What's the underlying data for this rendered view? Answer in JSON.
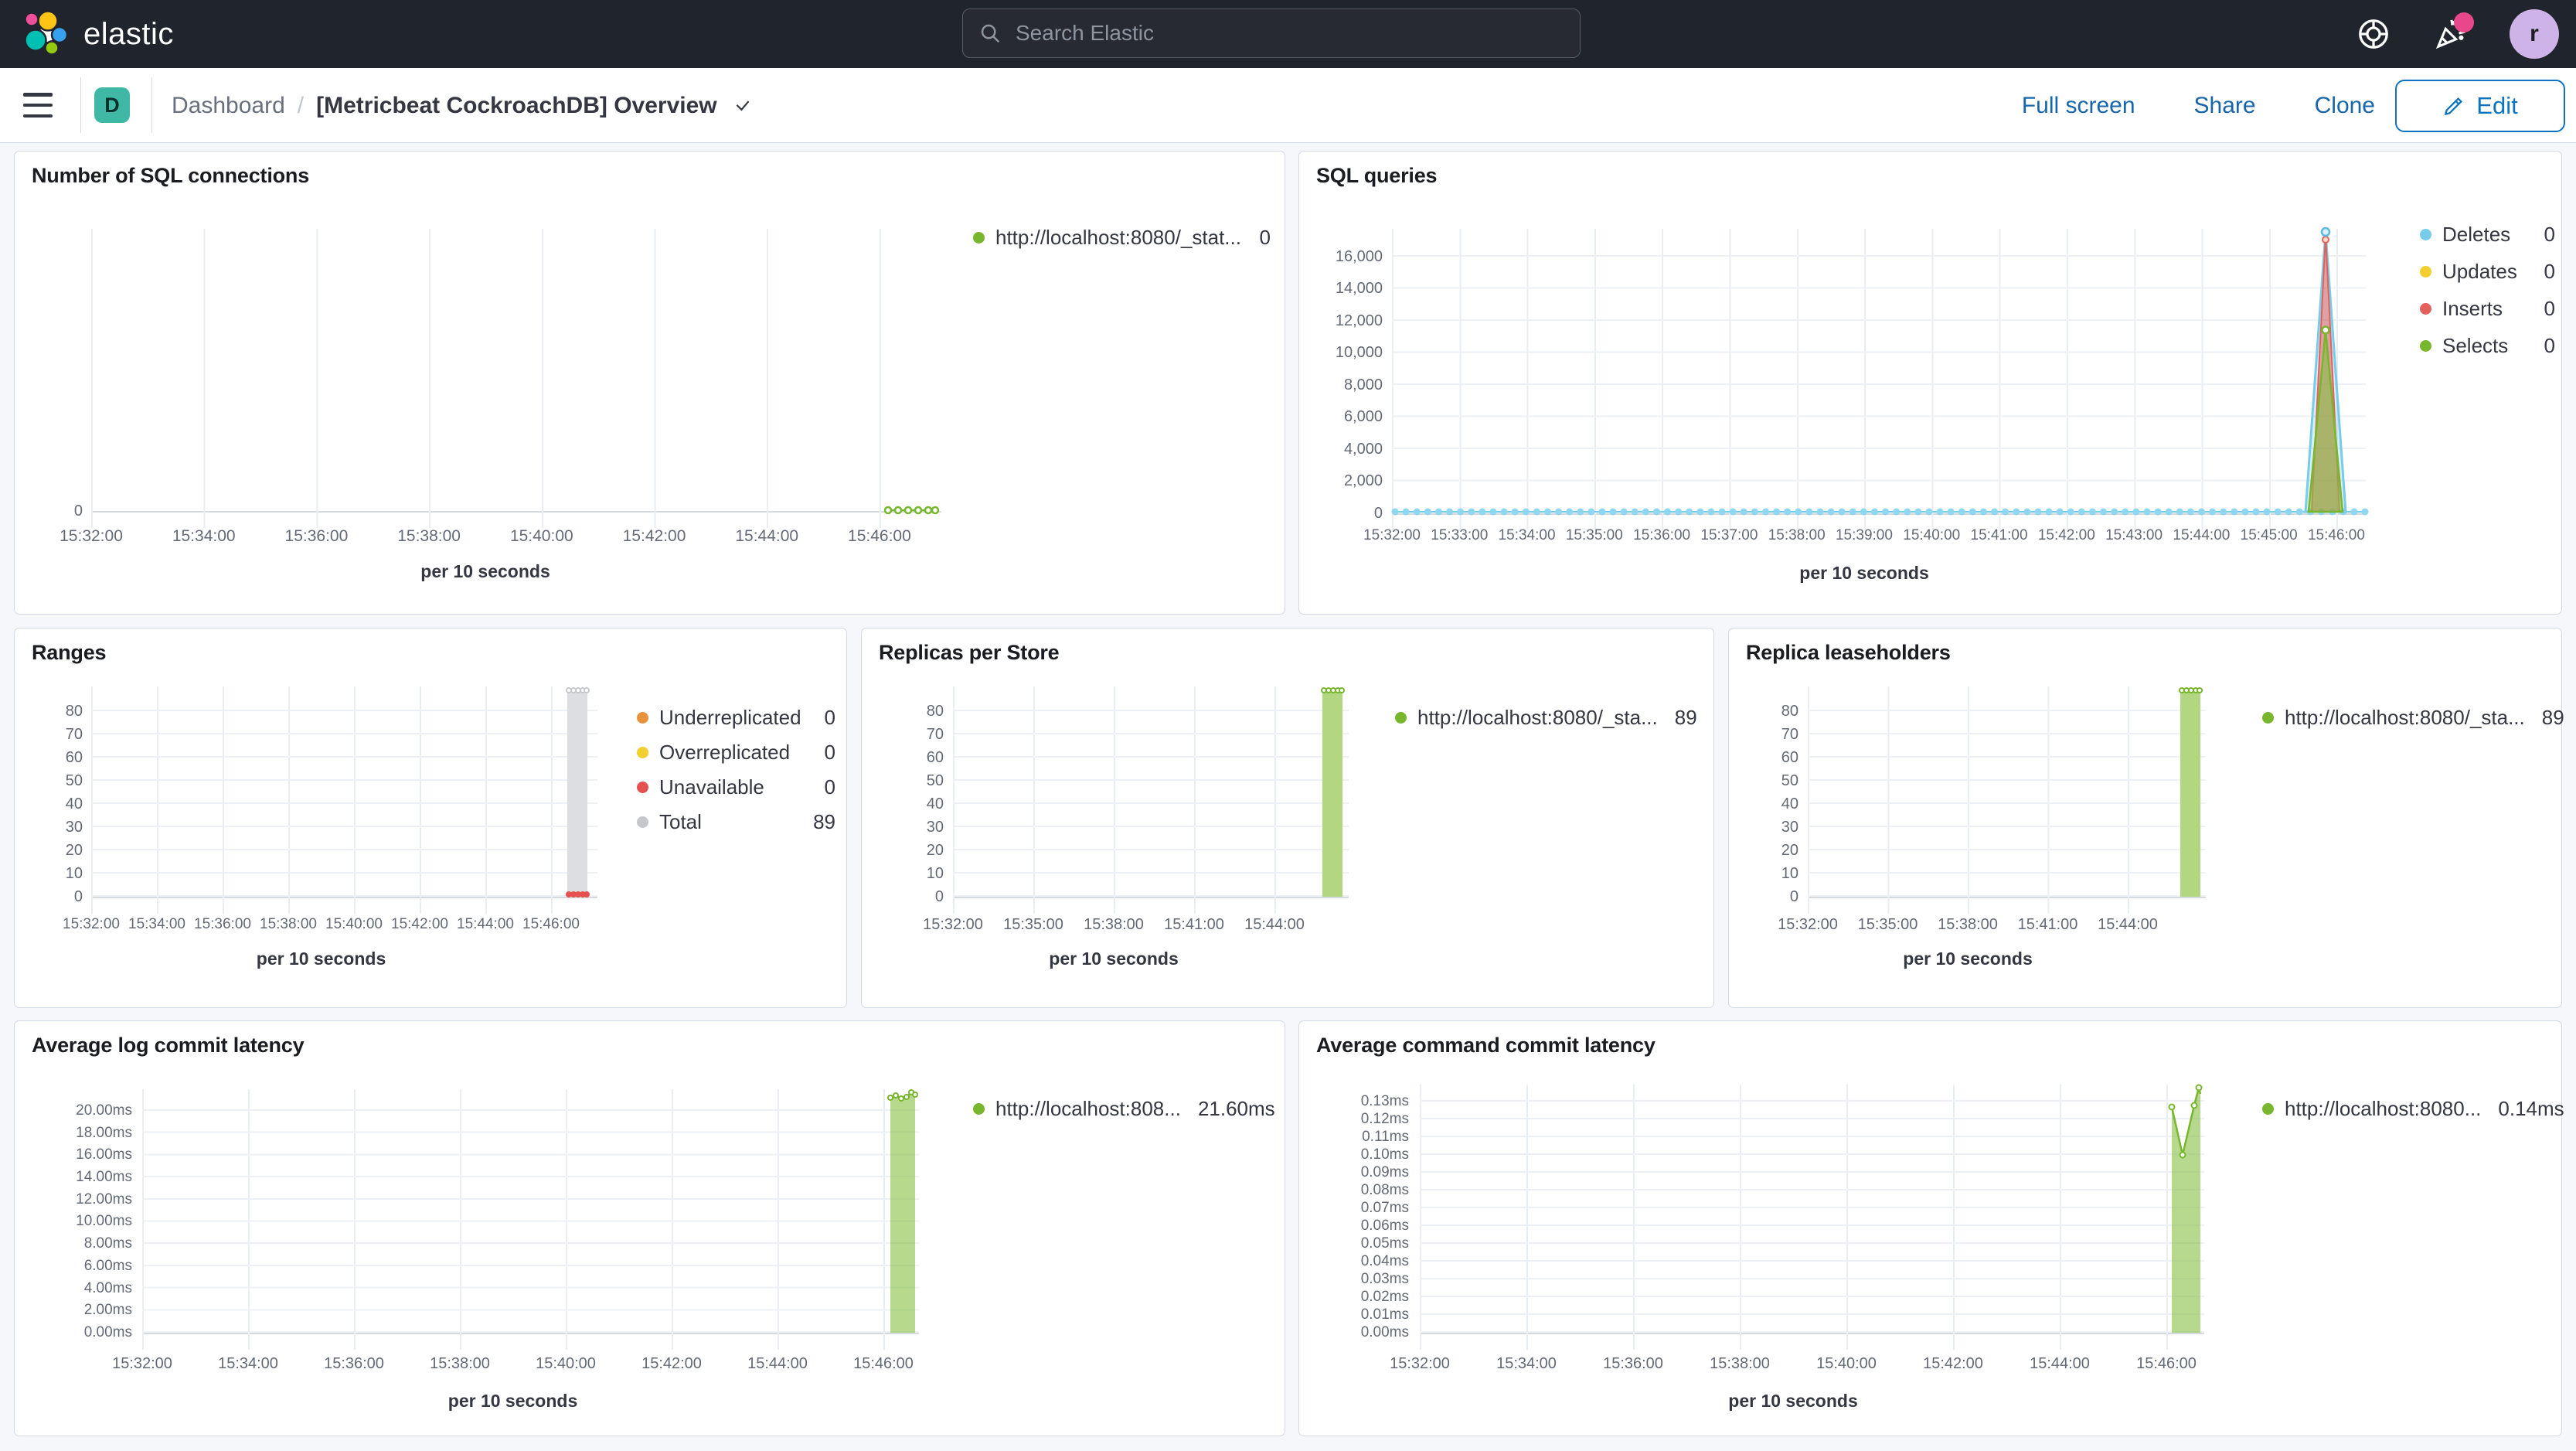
{
  "chrome": {
    "brand": "elastic",
    "search": {
      "placeholder": "Search Elastic"
    },
    "avatar_initial": "r",
    "space_initial": "D"
  },
  "header": {
    "breadcrumb": {
      "root": "Dashboard",
      "separator": "/",
      "current": "[Metricbeat CockroachDB] Overview"
    },
    "actions": {
      "full_screen": "Full screen",
      "share": "Share",
      "clone": "Clone",
      "edit": "Edit"
    }
  },
  "panels": {
    "sql_connections": {
      "title": "Number of SQL connections",
      "x_label": "per 10 seconds",
      "y_ticks": [
        "0"
      ],
      "x_ticks": [
        "15:32:00",
        "15:34:00",
        "15:36:00",
        "15:38:00",
        "15:40:00",
        "15:42:00",
        "15:44:00",
        "15:46:00"
      ],
      "legend": [
        {
          "color": "#77B62D",
          "label": "http://localhost:8080/_stat...",
          "value": "0"
        }
      ]
    },
    "sql_queries": {
      "title": "SQL queries",
      "x_label": "per 10 seconds",
      "y_ticks": [
        "16,000",
        "14,000",
        "12,000",
        "10,000",
        "8,000",
        "6,000",
        "4,000",
        "2,000",
        "0"
      ],
      "x_ticks": [
        "15:32:00",
        "15:33:00",
        "15:34:00",
        "15:35:00",
        "15:36:00",
        "15:37:00",
        "15:38:00",
        "15:39:00",
        "15:40:00",
        "15:41:00",
        "15:42:00",
        "15:43:00",
        "15:44:00",
        "15:45:00",
        "15:46:00"
      ],
      "legend": [
        {
          "color": "#79CBEA",
          "label": "Deletes",
          "value": "0"
        },
        {
          "color": "#F2CF2F",
          "label": "Updates",
          "value": "0"
        },
        {
          "color": "#E2615C",
          "label": "Inserts",
          "value": "0"
        },
        {
          "color": "#77B62D",
          "label": "Selects",
          "value": "0"
        }
      ]
    },
    "ranges": {
      "title": "Ranges",
      "x_label": "per 10 seconds",
      "y_ticks": [
        "80",
        "70",
        "60",
        "50",
        "40",
        "30",
        "20",
        "10",
        "0"
      ],
      "x_ticks": [
        "15:32:00",
        "15:34:00",
        "15:36:00",
        "15:38:00",
        "15:40:00",
        "15:42:00",
        "15:44:00",
        "15:46:00"
      ],
      "legend": [
        {
          "color": "#E8923C",
          "label": "Underreplicated",
          "value": "0"
        },
        {
          "color": "#F2CF2F",
          "label": "Overreplicated",
          "value": "0"
        },
        {
          "color": "#E4514F",
          "label": "Unavailable",
          "value": "0"
        },
        {
          "color": "#C5C7CC",
          "label": "Total",
          "value": "89"
        }
      ]
    },
    "replicas_per_store": {
      "title": "Replicas per Store",
      "x_label": "per 10 seconds",
      "y_ticks": [
        "80",
        "70",
        "60",
        "50",
        "40",
        "30",
        "20",
        "10",
        "0"
      ],
      "x_ticks": [
        "15:32:00",
        "15:35:00",
        "15:38:00",
        "15:41:00",
        "15:44:00"
      ],
      "legend": [
        {
          "color": "#77B62D",
          "label": "http://localhost:8080/_sta...",
          "value": "89"
        }
      ]
    },
    "replica_leaseholders": {
      "title": "Replica leaseholders",
      "x_label": "per 10 seconds",
      "y_ticks": [
        "80",
        "70",
        "60",
        "50",
        "40",
        "30",
        "20",
        "10",
        "0"
      ],
      "x_ticks": [
        "15:32:00",
        "15:35:00",
        "15:38:00",
        "15:41:00",
        "15:44:00"
      ],
      "legend": [
        {
          "color": "#77B62D",
          "label": "http://localhost:8080/_sta...",
          "value": "89"
        }
      ]
    },
    "avg_log_commit_latency": {
      "title": "Average log commit latency",
      "x_label": "per 10 seconds",
      "y_ticks": [
        "20.00ms",
        "18.00ms",
        "16.00ms",
        "14.00ms",
        "12.00ms",
        "10.00ms",
        "8.00ms",
        "6.00ms",
        "4.00ms",
        "2.00ms",
        "0.00ms"
      ],
      "x_ticks": [
        "15:32:00",
        "15:34:00",
        "15:36:00",
        "15:38:00",
        "15:40:00",
        "15:42:00",
        "15:44:00",
        "15:46:00"
      ],
      "legend": [
        {
          "color": "#77B62D",
          "label": "http://localhost:808...",
          "value": "21.60ms"
        }
      ]
    },
    "avg_command_commit_latency": {
      "title": "Average command commit latency",
      "x_label": "per 10 seconds",
      "y_ticks": [
        "0.13ms",
        "0.12ms",
        "0.11ms",
        "0.10ms",
        "0.09ms",
        "0.08ms",
        "0.07ms",
        "0.06ms",
        "0.05ms",
        "0.04ms",
        "0.03ms",
        "0.02ms",
        "0.01ms",
        "0.00ms"
      ],
      "x_ticks": [
        "15:32:00",
        "15:34:00",
        "15:36:00",
        "15:38:00",
        "15:40:00",
        "15:42:00",
        "15:44:00",
        "15:46:00"
      ],
      "legend": [
        {
          "color": "#77B62D",
          "label": "http://localhost:8080...",
          "value": "0.14ms"
        }
      ]
    }
  },
  "chart_data": [
    {
      "id": "sql_connections",
      "type": "line",
      "title": "Number of SQL connections",
      "xlabel": "per 10 seconds",
      "x_range": [
        "15:32:00",
        "15:46:40"
      ],
      "ylim": [
        0,
        1
      ],
      "grid": true,
      "legend_position": "right",
      "series": [
        {
          "name": "http://localhost:8080/_stat...",
          "color": "#77B62D",
          "legend_value": "0",
          "points": [
            [
              "15:45:50",
              0
            ],
            [
              "15:46:00",
              0
            ],
            [
              "15:46:10",
              0
            ],
            [
              "15:46:20",
              0
            ],
            [
              "15:46:30",
              0
            ],
            [
              "15:46:40",
              0
            ]
          ]
        }
      ]
    },
    {
      "id": "sql_queries",
      "type": "area",
      "title": "SQL queries",
      "xlabel": "per 10 seconds",
      "x_range": [
        "15:32:00",
        "15:46:20"
      ],
      "ylim": [
        0,
        17600
      ],
      "y_tick_step": 2000,
      "grid": true,
      "legend_position": "right",
      "series": [
        {
          "name": "Deletes",
          "color": "#79CBEA",
          "legend_value": "0",
          "baseline_value": 0,
          "peak": {
            "time": "15:45:50",
            "value": 17600
          }
        },
        {
          "name": "Updates",
          "color": "#F2CF2F",
          "legend_value": "0",
          "baseline_value": 0,
          "peak": null
        },
        {
          "name": "Inserts",
          "color": "#E2615C",
          "legend_value": "0",
          "baseline_value": 0,
          "peak": {
            "time": "15:45:50",
            "value": 17400
          }
        },
        {
          "name": "Selects",
          "color": "#77B62D",
          "legend_value": "0",
          "baseline_value": 0,
          "peak": {
            "time": "15:45:50",
            "value": 11500
          }
        }
      ]
    },
    {
      "id": "ranges",
      "type": "bar",
      "title": "Ranges",
      "xlabel": "per 10 seconds",
      "x_range": [
        "15:32:00",
        "15:46:20"
      ],
      "ylim": [
        0,
        89
      ],
      "y_tick_step": 10,
      "grid": true,
      "legend_position": "right",
      "series": [
        {
          "name": "Underreplicated",
          "color": "#E8923C",
          "legend_value": "0",
          "points": []
        },
        {
          "name": "Overreplicated",
          "color": "#F2CF2F",
          "legend_value": "0",
          "points": []
        },
        {
          "name": "Unavailable",
          "color": "#E4514F",
          "legend_value": "0",
          "points": [
            [
              "15:45:40",
              0
            ],
            [
              "15:45:50",
              0
            ],
            [
              "15:46:00",
              0
            ],
            [
              "15:46:10",
              0
            ],
            [
              "15:46:20",
              0
            ]
          ]
        },
        {
          "name": "Total",
          "color": "#C5C7CC",
          "legend_value": "89",
          "points": [
            [
              "15:45:40",
              89
            ],
            [
              "15:45:50",
              89
            ],
            [
              "15:46:00",
              89
            ],
            [
              "15:46:10",
              89
            ],
            [
              "15:46:20",
              89
            ]
          ]
        }
      ]
    },
    {
      "id": "replicas_per_store",
      "type": "bar",
      "title": "Replicas per Store",
      "xlabel": "per 10 seconds",
      "x_range": [
        "15:32:00",
        "15:46:20"
      ],
      "ylim": [
        0,
        89
      ],
      "y_tick_step": 10,
      "grid": true,
      "legend_position": "right",
      "series": [
        {
          "name": "http://localhost:8080/_sta...",
          "color": "#77B62D",
          "legend_value": "89",
          "points": [
            [
              "15:45:40",
              89
            ],
            [
              "15:45:50",
              89
            ],
            [
              "15:46:00",
              89
            ],
            [
              "15:46:10",
              89
            ],
            [
              "15:46:20",
              89
            ]
          ]
        }
      ]
    },
    {
      "id": "replica_leaseholders",
      "type": "bar",
      "title": "Replica leaseholders",
      "xlabel": "per 10 seconds",
      "x_range": [
        "15:32:00",
        "15:46:20"
      ],
      "ylim": [
        0,
        89
      ],
      "y_tick_step": 10,
      "grid": true,
      "legend_position": "right",
      "series": [
        {
          "name": "http://localhost:8080/_sta...",
          "color": "#77B62D",
          "legend_value": "89",
          "points": [
            [
              "15:45:40",
              89
            ],
            [
              "15:45:50",
              89
            ],
            [
              "15:46:00",
              89
            ],
            [
              "15:46:10",
              89
            ],
            [
              "15:46:20",
              89
            ]
          ]
        }
      ]
    },
    {
      "id": "avg_log_commit_latency",
      "type": "area",
      "title": "Average log commit latency",
      "xlabel": "per 10 seconds",
      "x_range": [
        "15:32:00",
        "15:46:40"
      ],
      "ylim": [
        0,
        21.6
      ],
      "unit": "ms",
      "y_tick_step": 2,
      "grid": true,
      "legend_position": "right",
      "series": [
        {
          "name": "http://localhost:808...",
          "color": "#77B62D",
          "legend_value": "21.60ms",
          "points": [
            [
              "15:45:50",
              21.3
            ],
            [
              "15:46:00",
              21.2
            ],
            [
              "15:46:10",
              21.4
            ],
            [
              "15:46:20",
              21.3
            ],
            [
              "15:46:30",
              21.6
            ],
            [
              "15:46:40",
              21.4
            ]
          ]
        }
      ]
    },
    {
      "id": "avg_command_commit_latency",
      "type": "area",
      "title": "Average command commit latency",
      "xlabel": "per 10 seconds",
      "x_range": [
        "15:32:00",
        "15:46:20"
      ],
      "ylim": [
        0,
        0.138
      ],
      "unit": "ms",
      "y_tick_step": 0.01,
      "grid": true,
      "legend_position": "right",
      "series": [
        {
          "name": "http://localhost:8080...",
          "color": "#77B62D",
          "legend_value": "0.14ms",
          "points": [
            [
              "15:45:50",
              0.127
            ],
            [
              "15:46:00",
              0.1
            ],
            [
              "15:46:10",
              0.128
            ],
            [
              "15:46:20",
              0.138
            ]
          ]
        }
      ]
    }
  ]
}
